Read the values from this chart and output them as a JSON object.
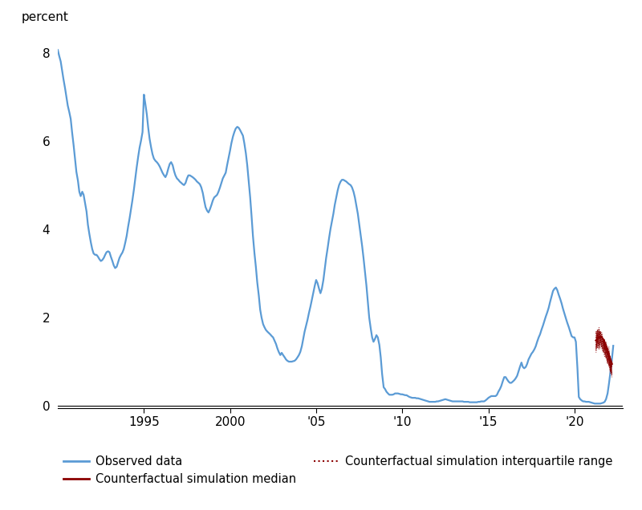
{
  "ylabel": "percent",
  "xlim": [
    1990.0,
    2022.8
  ],
  "ylim": [
    -0.05,
    8.5
  ],
  "yticks": [
    0,
    2,
    4,
    6,
    8
  ],
  "xticks": [
    1995,
    2000,
    2005,
    2010,
    2015,
    2020
  ],
  "xticklabels": [
    "1995",
    "2000",
    "'05",
    "'10",
    "'15",
    "'20"
  ],
  "observed_color": "#5b9bd5",
  "median_color": "#8b0000",
  "iqr_color": "#8b0000",
  "background_color": "#ffffff",
  "observed_data": [
    [
      1990.0,
      8.06
    ],
    [
      1990.08,
      7.93
    ],
    [
      1990.17,
      7.8
    ],
    [
      1990.25,
      7.6
    ],
    [
      1990.33,
      7.4
    ],
    [
      1990.42,
      7.2
    ],
    [
      1990.5,
      7.0
    ],
    [
      1990.58,
      6.8
    ],
    [
      1990.67,
      6.65
    ],
    [
      1990.75,
      6.5
    ],
    [
      1990.83,
      6.2
    ],
    [
      1990.92,
      5.9
    ],
    [
      1991.0,
      5.6
    ],
    [
      1991.08,
      5.3
    ],
    [
      1991.17,
      5.1
    ],
    [
      1991.25,
      4.85
    ],
    [
      1991.33,
      4.75
    ],
    [
      1991.42,
      4.85
    ],
    [
      1991.5,
      4.78
    ],
    [
      1991.58,
      4.6
    ],
    [
      1991.67,
      4.4
    ],
    [
      1991.75,
      4.1
    ],
    [
      1991.83,
      3.9
    ],
    [
      1991.92,
      3.7
    ],
    [
      1992.0,
      3.55
    ],
    [
      1992.08,
      3.45
    ],
    [
      1992.17,
      3.42
    ],
    [
      1992.25,
      3.42
    ],
    [
      1992.33,
      3.38
    ],
    [
      1992.42,
      3.32
    ],
    [
      1992.5,
      3.28
    ],
    [
      1992.58,
      3.3
    ],
    [
      1992.67,
      3.35
    ],
    [
      1992.75,
      3.42
    ],
    [
      1992.83,
      3.48
    ],
    [
      1992.92,
      3.5
    ],
    [
      1993.0,
      3.48
    ],
    [
      1993.08,
      3.38
    ],
    [
      1993.17,
      3.28
    ],
    [
      1993.25,
      3.18
    ],
    [
      1993.33,
      3.12
    ],
    [
      1993.42,
      3.15
    ],
    [
      1993.5,
      3.25
    ],
    [
      1993.58,
      3.35
    ],
    [
      1993.67,
      3.42
    ],
    [
      1993.75,
      3.47
    ],
    [
      1993.83,
      3.55
    ],
    [
      1993.92,
      3.7
    ],
    [
      1994.0,
      3.85
    ],
    [
      1994.08,
      4.05
    ],
    [
      1994.17,
      4.25
    ],
    [
      1994.25,
      4.45
    ],
    [
      1994.33,
      4.65
    ],
    [
      1994.42,
      4.9
    ],
    [
      1994.5,
      5.15
    ],
    [
      1994.58,
      5.4
    ],
    [
      1994.67,
      5.65
    ],
    [
      1994.75,
      5.85
    ],
    [
      1994.83,
      6.0
    ],
    [
      1994.92,
      6.2
    ],
    [
      1995.0,
      7.05
    ],
    [
      1995.08,
      6.85
    ],
    [
      1995.17,
      6.6
    ],
    [
      1995.25,
      6.3
    ],
    [
      1995.33,
      6.05
    ],
    [
      1995.42,
      5.85
    ],
    [
      1995.5,
      5.7
    ],
    [
      1995.58,
      5.6
    ],
    [
      1995.67,
      5.55
    ],
    [
      1995.75,
      5.52
    ],
    [
      1995.83,
      5.48
    ],
    [
      1995.92,
      5.42
    ],
    [
      1996.0,
      5.35
    ],
    [
      1996.08,
      5.28
    ],
    [
      1996.17,
      5.22
    ],
    [
      1996.25,
      5.18
    ],
    [
      1996.33,
      5.25
    ],
    [
      1996.42,
      5.38
    ],
    [
      1996.5,
      5.48
    ],
    [
      1996.58,
      5.52
    ],
    [
      1996.67,
      5.45
    ],
    [
      1996.75,
      5.32
    ],
    [
      1996.83,
      5.22
    ],
    [
      1996.92,
      5.15
    ],
    [
      1997.0,
      5.12
    ],
    [
      1997.08,
      5.08
    ],
    [
      1997.17,
      5.05
    ],
    [
      1997.25,
      5.02
    ],
    [
      1997.33,
      5.0
    ],
    [
      1997.42,
      5.05
    ],
    [
      1997.5,
      5.15
    ],
    [
      1997.58,
      5.22
    ],
    [
      1997.67,
      5.22
    ],
    [
      1997.75,
      5.2
    ],
    [
      1997.83,
      5.18
    ],
    [
      1997.92,
      5.15
    ],
    [
      1998.0,
      5.12
    ],
    [
      1998.08,
      5.08
    ],
    [
      1998.17,
      5.05
    ],
    [
      1998.25,
      5.02
    ],
    [
      1998.33,
      4.95
    ],
    [
      1998.42,
      4.82
    ],
    [
      1998.5,
      4.65
    ],
    [
      1998.58,
      4.5
    ],
    [
      1998.67,
      4.42
    ],
    [
      1998.75,
      4.38
    ],
    [
      1998.83,
      4.45
    ],
    [
      1998.92,
      4.55
    ],
    [
      1999.0,
      4.65
    ],
    [
      1999.08,
      4.72
    ],
    [
      1999.17,
      4.75
    ],
    [
      1999.25,
      4.78
    ],
    [
      1999.33,
      4.85
    ],
    [
      1999.42,
      4.95
    ],
    [
      1999.5,
      5.05
    ],
    [
      1999.58,
      5.15
    ],
    [
      1999.67,
      5.22
    ],
    [
      1999.75,
      5.28
    ],
    [
      1999.83,
      5.45
    ],
    [
      1999.92,
      5.62
    ],
    [
      2000.0,
      5.78
    ],
    [
      2000.08,
      5.95
    ],
    [
      2000.17,
      6.1
    ],
    [
      2000.25,
      6.2
    ],
    [
      2000.33,
      6.28
    ],
    [
      2000.42,
      6.32
    ],
    [
      2000.5,
      6.3
    ],
    [
      2000.58,
      6.25
    ],
    [
      2000.67,
      6.18
    ],
    [
      2000.75,
      6.12
    ],
    [
      2000.83,
      5.95
    ],
    [
      2000.92,
      5.72
    ],
    [
      2001.0,
      5.45
    ],
    [
      2001.08,
      5.1
    ],
    [
      2001.17,
      4.72
    ],
    [
      2001.25,
      4.3
    ],
    [
      2001.33,
      3.85
    ],
    [
      2001.42,
      3.45
    ],
    [
      2001.5,
      3.15
    ],
    [
      2001.58,
      2.8
    ],
    [
      2001.67,
      2.5
    ],
    [
      2001.75,
      2.18
    ],
    [
      2001.83,
      2.0
    ],
    [
      2001.92,
      1.85
    ],
    [
      2002.0,
      1.78
    ],
    [
      2002.08,
      1.72
    ],
    [
      2002.17,
      1.68
    ],
    [
      2002.25,
      1.65
    ],
    [
      2002.33,
      1.62
    ],
    [
      2002.42,
      1.58
    ],
    [
      2002.5,
      1.55
    ],
    [
      2002.58,
      1.48
    ],
    [
      2002.67,
      1.4
    ],
    [
      2002.75,
      1.3
    ],
    [
      2002.83,
      1.22
    ],
    [
      2002.92,
      1.15
    ],
    [
      2003.0,
      1.2
    ],
    [
      2003.08,
      1.15
    ],
    [
      2003.17,
      1.1
    ],
    [
      2003.25,
      1.05
    ],
    [
      2003.33,
      1.02
    ],
    [
      2003.42,
      1.0
    ],
    [
      2003.5,
      1.0
    ],
    [
      2003.58,
      1.0
    ],
    [
      2003.67,
      1.01
    ],
    [
      2003.75,
      1.02
    ],
    [
      2003.83,
      1.05
    ],
    [
      2003.92,
      1.1
    ],
    [
      2004.0,
      1.15
    ],
    [
      2004.08,
      1.22
    ],
    [
      2004.17,
      1.35
    ],
    [
      2004.25,
      1.52
    ],
    [
      2004.33,
      1.68
    ],
    [
      2004.42,
      1.82
    ],
    [
      2004.5,
      1.95
    ],
    [
      2004.58,
      2.1
    ],
    [
      2004.67,
      2.25
    ],
    [
      2004.75,
      2.4
    ],
    [
      2004.83,
      2.55
    ],
    [
      2004.92,
      2.72
    ],
    [
      2005.0,
      2.85
    ],
    [
      2005.08,
      2.78
    ],
    [
      2005.17,
      2.65
    ],
    [
      2005.25,
      2.55
    ],
    [
      2005.33,
      2.65
    ],
    [
      2005.42,
      2.85
    ],
    [
      2005.5,
      3.1
    ],
    [
      2005.58,
      3.35
    ],
    [
      2005.67,
      3.58
    ],
    [
      2005.75,
      3.8
    ],
    [
      2005.83,
      4.0
    ],
    [
      2005.92,
      4.18
    ],
    [
      2006.0,
      4.35
    ],
    [
      2006.08,
      4.55
    ],
    [
      2006.17,
      4.72
    ],
    [
      2006.25,
      4.88
    ],
    [
      2006.33,
      5.0
    ],
    [
      2006.42,
      5.08
    ],
    [
      2006.5,
      5.12
    ],
    [
      2006.58,
      5.12
    ],
    [
      2006.67,
      5.1
    ],
    [
      2006.75,
      5.08
    ],
    [
      2006.83,
      5.05
    ],
    [
      2006.92,
      5.02
    ],
    [
      2007.0,
      5.0
    ],
    [
      2007.08,
      4.95
    ],
    [
      2007.17,
      4.85
    ],
    [
      2007.25,
      4.72
    ],
    [
      2007.33,
      4.55
    ],
    [
      2007.42,
      4.35
    ],
    [
      2007.5,
      4.12
    ],
    [
      2007.58,
      3.88
    ],
    [
      2007.67,
      3.62
    ],
    [
      2007.75,
      3.35
    ],
    [
      2007.83,
      3.05
    ],
    [
      2007.92,
      2.72
    ],
    [
      2008.0,
      2.35
    ],
    [
      2008.08,
      2.0
    ],
    [
      2008.17,
      1.75
    ],
    [
      2008.25,
      1.55
    ],
    [
      2008.33,
      1.45
    ],
    [
      2008.42,
      1.52
    ],
    [
      2008.5,
      1.6
    ],
    [
      2008.58,
      1.55
    ],
    [
      2008.67,
      1.38
    ],
    [
      2008.75,
      1.1
    ],
    [
      2008.83,
      0.72
    ],
    [
      2008.92,
      0.42
    ],
    [
      2009.0,
      0.38
    ],
    [
      2009.08,
      0.32
    ],
    [
      2009.17,
      0.28
    ],
    [
      2009.25,
      0.25
    ],
    [
      2009.33,
      0.25
    ],
    [
      2009.42,
      0.25
    ],
    [
      2009.5,
      0.26
    ],
    [
      2009.58,
      0.28
    ],
    [
      2009.67,
      0.28
    ],
    [
      2009.75,
      0.28
    ],
    [
      2009.83,
      0.27
    ],
    [
      2009.92,
      0.26
    ],
    [
      2010.0,
      0.26
    ],
    [
      2010.08,
      0.25
    ],
    [
      2010.17,
      0.24
    ],
    [
      2010.25,
      0.24
    ],
    [
      2010.33,
      0.22
    ],
    [
      2010.42,
      0.2
    ],
    [
      2010.5,
      0.19
    ],
    [
      2010.58,
      0.18
    ],
    [
      2010.67,
      0.18
    ],
    [
      2010.75,
      0.18
    ],
    [
      2010.83,
      0.17
    ],
    [
      2010.92,
      0.17
    ],
    [
      2011.0,
      0.16
    ],
    [
      2011.08,
      0.15
    ],
    [
      2011.17,
      0.14
    ],
    [
      2011.25,
      0.13
    ],
    [
      2011.33,
      0.12
    ],
    [
      2011.42,
      0.11
    ],
    [
      2011.5,
      0.1
    ],
    [
      2011.58,
      0.09
    ],
    [
      2011.67,
      0.09
    ],
    [
      2011.75,
      0.09
    ],
    [
      2011.83,
      0.09
    ],
    [
      2011.92,
      0.09
    ],
    [
      2012.0,
      0.1
    ],
    [
      2012.08,
      0.1
    ],
    [
      2012.17,
      0.11
    ],
    [
      2012.25,
      0.12
    ],
    [
      2012.33,
      0.13
    ],
    [
      2012.42,
      0.14
    ],
    [
      2012.5,
      0.15
    ],
    [
      2012.58,
      0.14
    ],
    [
      2012.67,
      0.13
    ],
    [
      2012.75,
      0.12
    ],
    [
      2012.83,
      0.11
    ],
    [
      2012.92,
      0.1
    ],
    [
      2013.0,
      0.1
    ],
    [
      2013.08,
      0.1
    ],
    [
      2013.17,
      0.1
    ],
    [
      2013.25,
      0.1
    ],
    [
      2013.33,
      0.1
    ],
    [
      2013.42,
      0.1
    ],
    [
      2013.5,
      0.1
    ],
    [
      2013.58,
      0.09
    ],
    [
      2013.67,
      0.09
    ],
    [
      2013.75,
      0.09
    ],
    [
      2013.83,
      0.09
    ],
    [
      2013.92,
      0.08
    ],
    [
      2014.0,
      0.08
    ],
    [
      2014.08,
      0.08
    ],
    [
      2014.17,
      0.08
    ],
    [
      2014.25,
      0.08
    ],
    [
      2014.33,
      0.08
    ],
    [
      2014.42,
      0.09
    ],
    [
      2014.5,
      0.09
    ],
    [
      2014.58,
      0.1
    ],
    [
      2014.67,
      0.1
    ],
    [
      2014.75,
      0.1
    ],
    [
      2014.83,
      0.12
    ],
    [
      2014.92,
      0.15
    ],
    [
      2015.0,
      0.18
    ],
    [
      2015.08,
      0.2
    ],
    [
      2015.17,
      0.22
    ],
    [
      2015.25,
      0.22
    ],
    [
      2015.33,
      0.22
    ],
    [
      2015.42,
      0.22
    ],
    [
      2015.5,
      0.25
    ],
    [
      2015.58,
      0.32
    ],
    [
      2015.67,
      0.38
    ],
    [
      2015.75,
      0.45
    ],
    [
      2015.83,
      0.55
    ],
    [
      2015.92,
      0.65
    ],
    [
      2016.0,
      0.65
    ],
    [
      2016.08,
      0.6
    ],
    [
      2016.17,
      0.55
    ],
    [
      2016.25,
      0.52
    ],
    [
      2016.33,
      0.52
    ],
    [
      2016.42,
      0.55
    ],
    [
      2016.5,
      0.58
    ],
    [
      2016.58,
      0.62
    ],
    [
      2016.67,
      0.68
    ],
    [
      2016.75,
      0.78
    ],
    [
      2016.83,
      0.88
    ],
    [
      2016.92,
      0.98
    ],
    [
      2017.0,
      0.88
    ],
    [
      2017.08,
      0.85
    ],
    [
      2017.17,
      0.88
    ],
    [
      2017.25,
      0.95
    ],
    [
      2017.33,
      1.05
    ],
    [
      2017.42,
      1.12
    ],
    [
      2017.5,
      1.18
    ],
    [
      2017.58,
      1.22
    ],
    [
      2017.67,
      1.28
    ],
    [
      2017.75,
      1.35
    ],
    [
      2017.83,
      1.45
    ],
    [
      2017.92,
      1.55
    ],
    [
      2018.0,
      1.62
    ],
    [
      2018.08,
      1.72
    ],
    [
      2018.17,
      1.82
    ],
    [
      2018.25,
      1.92
    ],
    [
      2018.33,
      2.02
    ],
    [
      2018.42,
      2.12
    ],
    [
      2018.5,
      2.22
    ],
    [
      2018.58,
      2.35
    ],
    [
      2018.67,
      2.48
    ],
    [
      2018.75,
      2.6
    ],
    [
      2018.83,
      2.65
    ],
    [
      2018.92,
      2.68
    ],
    [
      2019.0,
      2.62
    ],
    [
      2019.08,
      2.52
    ],
    [
      2019.17,
      2.42
    ],
    [
      2019.25,
      2.32
    ],
    [
      2019.33,
      2.2
    ],
    [
      2019.42,
      2.08
    ],
    [
      2019.5,
      1.98
    ],
    [
      2019.58,
      1.88
    ],
    [
      2019.67,
      1.78
    ],
    [
      2019.75,
      1.68
    ],
    [
      2019.83,
      1.58
    ],
    [
      2019.92,
      1.55
    ],
    [
      2020.0,
      1.55
    ],
    [
      2020.08,
      1.45
    ],
    [
      2020.17,
      0.85
    ],
    [
      2020.25,
      0.2
    ],
    [
      2020.33,
      0.15
    ],
    [
      2020.42,
      0.12
    ],
    [
      2020.5,
      0.1
    ],
    [
      2020.58,
      0.1
    ],
    [
      2020.67,
      0.09
    ],
    [
      2020.75,
      0.09
    ],
    [
      2020.83,
      0.09
    ],
    [
      2020.92,
      0.08
    ],
    [
      2021.0,
      0.07
    ],
    [
      2021.08,
      0.06
    ],
    [
      2021.17,
      0.05
    ],
    [
      2021.25,
      0.05
    ],
    [
      2021.33,
      0.05
    ],
    [
      2021.42,
      0.05
    ],
    [
      2021.5,
      0.05
    ],
    [
      2021.58,
      0.06
    ],
    [
      2021.67,
      0.07
    ],
    [
      2021.75,
      0.09
    ],
    [
      2021.83,
      0.15
    ],
    [
      2021.92,
      0.28
    ],
    [
      2022.0,
      0.5
    ],
    [
      2022.08,
      0.75
    ],
    [
      2022.17,
      1.05
    ],
    [
      2022.25,
      1.36
    ]
  ],
  "median_data": [
    [
      2021.25,
      1.48
    ],
    [
      2021.33,
      1.52
    ],
    [
      2021.42,
      1.55
    ],
    [
      2021.5,
      1.57
    ],
    [
      2021.58,
      1.55
    ],
    [
      2021.67,
      1.5
    ],
    [
      2021.75,
      1.43
    ],
    [
      2021.83,
      1.35
    ],
    [
      2021.92,
      1.25
    ],
    [
      2022.0,
      1.15
    ],
    [
      2022.08,
      1.05
    ],
    [
      2022.17,
      0.95
    ]
  ],
  "iqr_upper_data": [
    [
      2021.25,
      1.72
    ],
    [
      2021.33,
      1.74
    ],
    [
      2021.42,
      1.73
    ],
    [
      2021.5,
      1.7
    ],
    [
      2021.58,
      1.65
    ],
    [
      2021.67,
      1.58
    ],
    [
      2021.75,
      1.5
    ],
    [
      2021.83,
      1.42
    ],
    [
      2021.92,
      1.32
    ],
    [
      2022.0,
      1.22
    ],
    [
      2022.08,
      1.12
    ],
    [
      2022.17,
      1.02
    ]
  ],
  "iqr_lower_data": [
    [
      2021.25,
      1.2
    ],
    [
      2021.33,
      1.25
    ],
    [
      2021.42,
      1.28
    ],
    [
      2021.5,
      1.3
    ],
    [
      2021.58,
      1.28
    ],
    [
      2021.67,
      1.22
    ],
    [
      2021.75,
      1.15
    ],
    [
      2021.83,
      1.05
    ],
    [
      2021.92,
      0.95
    ],
    [
      2022.0,
      0.85
    ],
    [
      2022.08,
      0.75
    ],
    [
      2022.17,
      0.65
    ]
  ],
  "legend_labels": [
    "Observed data",
    "Counterfactual simulation median",
    "Counterfactual simulation interquartile range"
  ],
  "ylabel_fontsize": 11,
  "tick_fontsize": 11,
  "legend_fontsize": 10.5
}
